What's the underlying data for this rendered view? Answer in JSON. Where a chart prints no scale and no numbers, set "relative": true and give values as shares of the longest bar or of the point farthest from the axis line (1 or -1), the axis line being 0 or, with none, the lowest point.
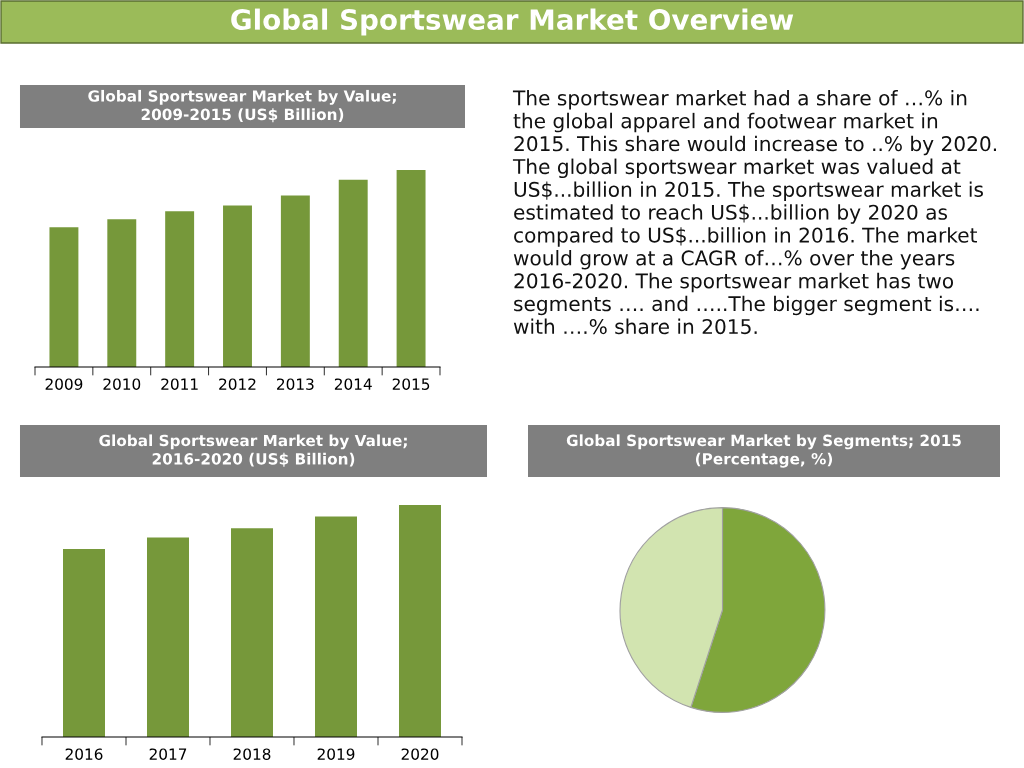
{
  "chart_data": [
    {
      "type": "other",
      "title": "Global Sportswear Market Overview"
    },
    {
      "type": "bar",
      "title": "Global Sportswear Market by Value;\n2009-2015 (US$ Billion)",
      "categories": [
        "2009",
        "2010",
        "2011",
        "2012",
        "2013",
        "2014",
        "2015"
      ],
      "values": [
        0.71,
        0.75,
        0.79,
        0.82,
        0.87,
        0.95,
        1
      ],
      "color": "#76983a",
      "relative": true,
      "grid": false,
      "legend": false
    },
    {
      "type": "other",
      "annotations": [
        "The sportswear market had a share of …% in the global apparel and footwear market in 2015. This share would increase to ..% by 2020. The global sportswear market was valued at US$...billion in 2015. The sportswear market is estimated to reach US$...billion by 2020 as compared to US$...billion in 2016. The market would grow at a CAGR of…% over the years 2016-2020. The sportswear market has two segments …. and …..The bigger segment is…. with ….% share in 2015."
      ]
    },
    {
      "type": "bar",
      "title": "Global Sportswear Market by Value;\n2016-2020 (US$ Billion)",
      "categories": [
        "2016",
        "2017",
        "2018",
        "2019",
        "2020"
      ],
      "values": [
        0.81,
        0.86,
        0.9,
        0.95,
        1
      ],
      "color": "#76983a",
      "relative": true,
      "grid": false,
      "legend": false
    },
    {
      "type": "pie",
      "title": "Global Sportswear Market by Segments; 2015\n(Percentage, %)",
      "categories": [
        null,
        null
      ],
      "values": [
        55,
        45
      ],
      "colors": [
        "#7fa63b",
        "#d2e4b0"
      ],
      "legend": false
    }
  ]
}
